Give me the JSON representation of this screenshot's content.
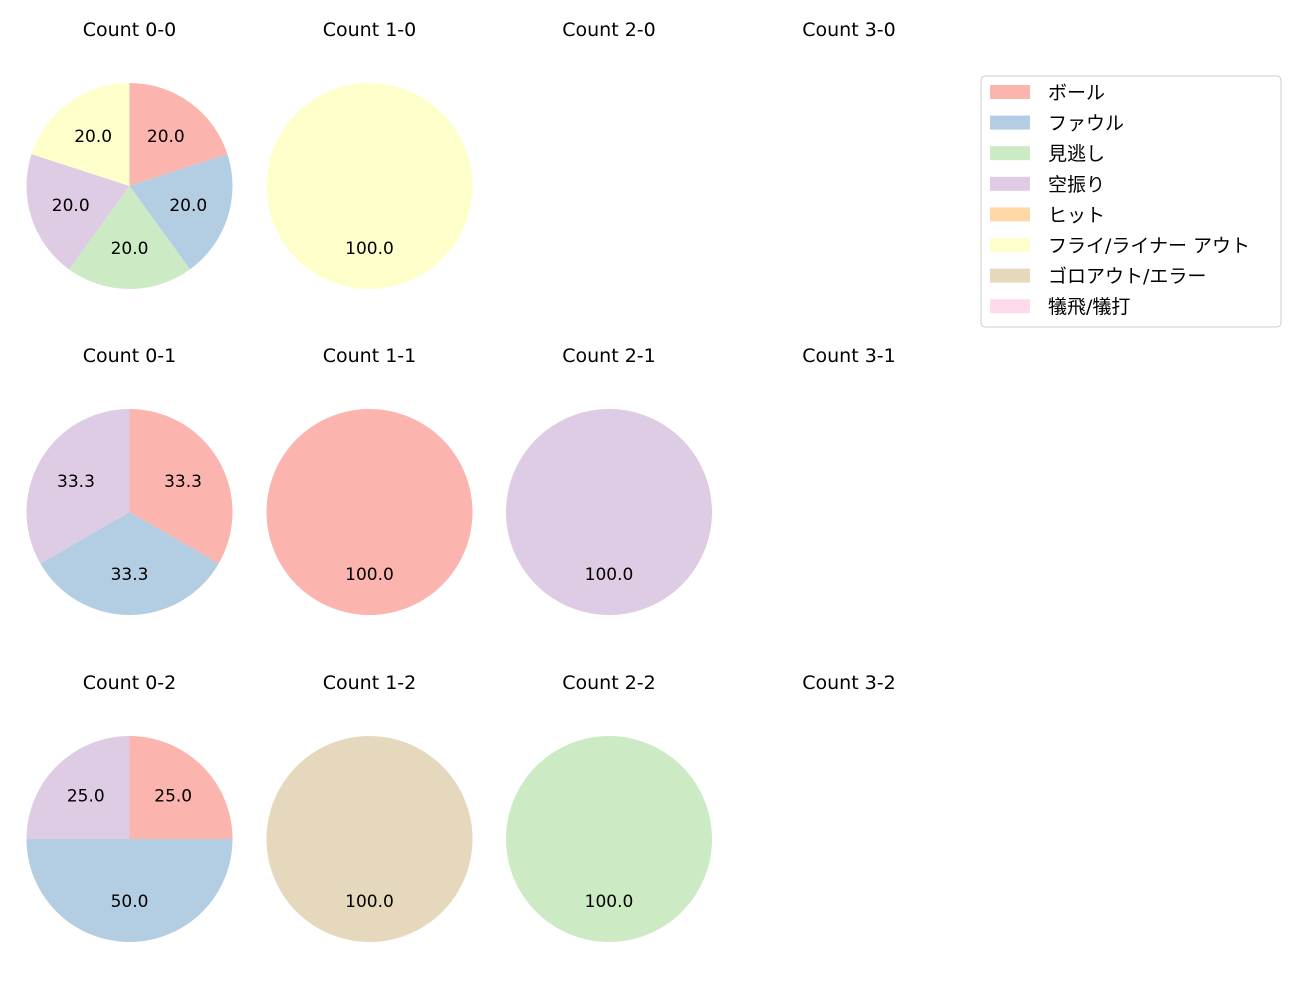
{
  "legend": {
    "entries": [
      {
        "label": "ボール",
        "color": "#fbb4ae"
      },
      {
        "label": "ファウル",
        "color": "#b3cde3"
      },
      {
        "label": "見逃し",
        "color": "#ccebc5"
      },
      {
        "label": "空振り",
        "color": "#decbe4"
      },
      {
        "label": "ヒット",
        "color": "#fed9a6"
      },
      {
        "label": "フライ/ライナー アウト",
        "color": "#ffffcc"
      },
      {
        "label": "ゴロアウト/エラー",
        "color": "#e5d8bd"
      },
      {
        "label": "犠飛/犠打",
        "color": "#fddaec"
      }
    ]
  },
  "chart_data": [
    {
      "type": "pie",
      "title": "Count 0-0",
      "slices": [
        {
          "category": "ボール",
          "value": 20.0,
          "label": "20.0"
        },
        {
          "category": "ファウル",
          "value": 20.0,
          "label": "20.0"
        },
        {
          "category": "見逃し",
          "value": 20.0,
          "label": "20.0"
        },
        {
          "category": "空振り",
          "value": 20.0,
          "label": "20.0"
        },
        {
          "category": "フライ/ライナー アウト",
          "value": 20.0,
          "label": "20.0"
        }
      ]
    },
    {
      "type": "pie",
      "title": "Count 1-0",
      "slices": [
        {
          "category": "フライ/ライナー アウト",
          "value": 100.0,
          "label": "100.0"
        }
      ]
    },
    {
      "type": "pie",
      "title": "Count 2-0",
      "slices": []
    },
    {
      "type": "pie",
      "title": "Count 3-0",
      "slices": []
    },
    {
      "type": "pie",
      "title": "Count 0-1",
      "slices": [
        {
          "category": "ボール",
          "value": 33.3,
          "label": "33.3"
        },
        {
          "category": "ファウル",
          "value": 33.3,
          "label": "33.3"
        },
        {
          "category": "空振り",
          "value": 33.3,
          "label": "33.3"
        }
      ]
    },
    {
      "type": "pie",
      "title": "Count 1-1",
      "slices": [
        {
          "category": "ボール",
          "value": 100.0,
          "label": "100.0"
        }
      ]
    },
    {
      "type": "pie",
      "title": "Count 2-1",
      "slices": [
        {
          "category": "空振り",
          "value": 100.0,
          "label": "100.0"
        }
      ]
    },
    {
      "type": "pie",
      "title": "Count 3-1",
      "slices": []
    },
    {
      "type": "pie",
      "title": "Count 0-2",
      "slices": [
        {
          "category": "ボール",
          "value": 25.0,
          "label": "25.0"
        },
        {
          "category": "ファウル",
          "value": 50.0,
          "label": "50.0"
        },
        {
          "category": "空振り",
          "value": 25.0,
          "label": "25.0"
        }
      ]
    },
    {
      "type": "pie",
      "title": "Count 1-2",
      "slices": [
        {
          "category": "ゴロアウト/エラー",
          "value": 100.0,
          "label": "100.0"
        }
      ]
    },
    {
      "type": "pie",
      "title": "Count 2-2",
      "slices": [
        {
          "category": "見逃し",
          "value": 100.0,
          "label": "100.0"
        }
      ]
    },
    {
      "type": "pie",
      "title": "Count 3-2",
      "slices": []
    }
  ]
}
